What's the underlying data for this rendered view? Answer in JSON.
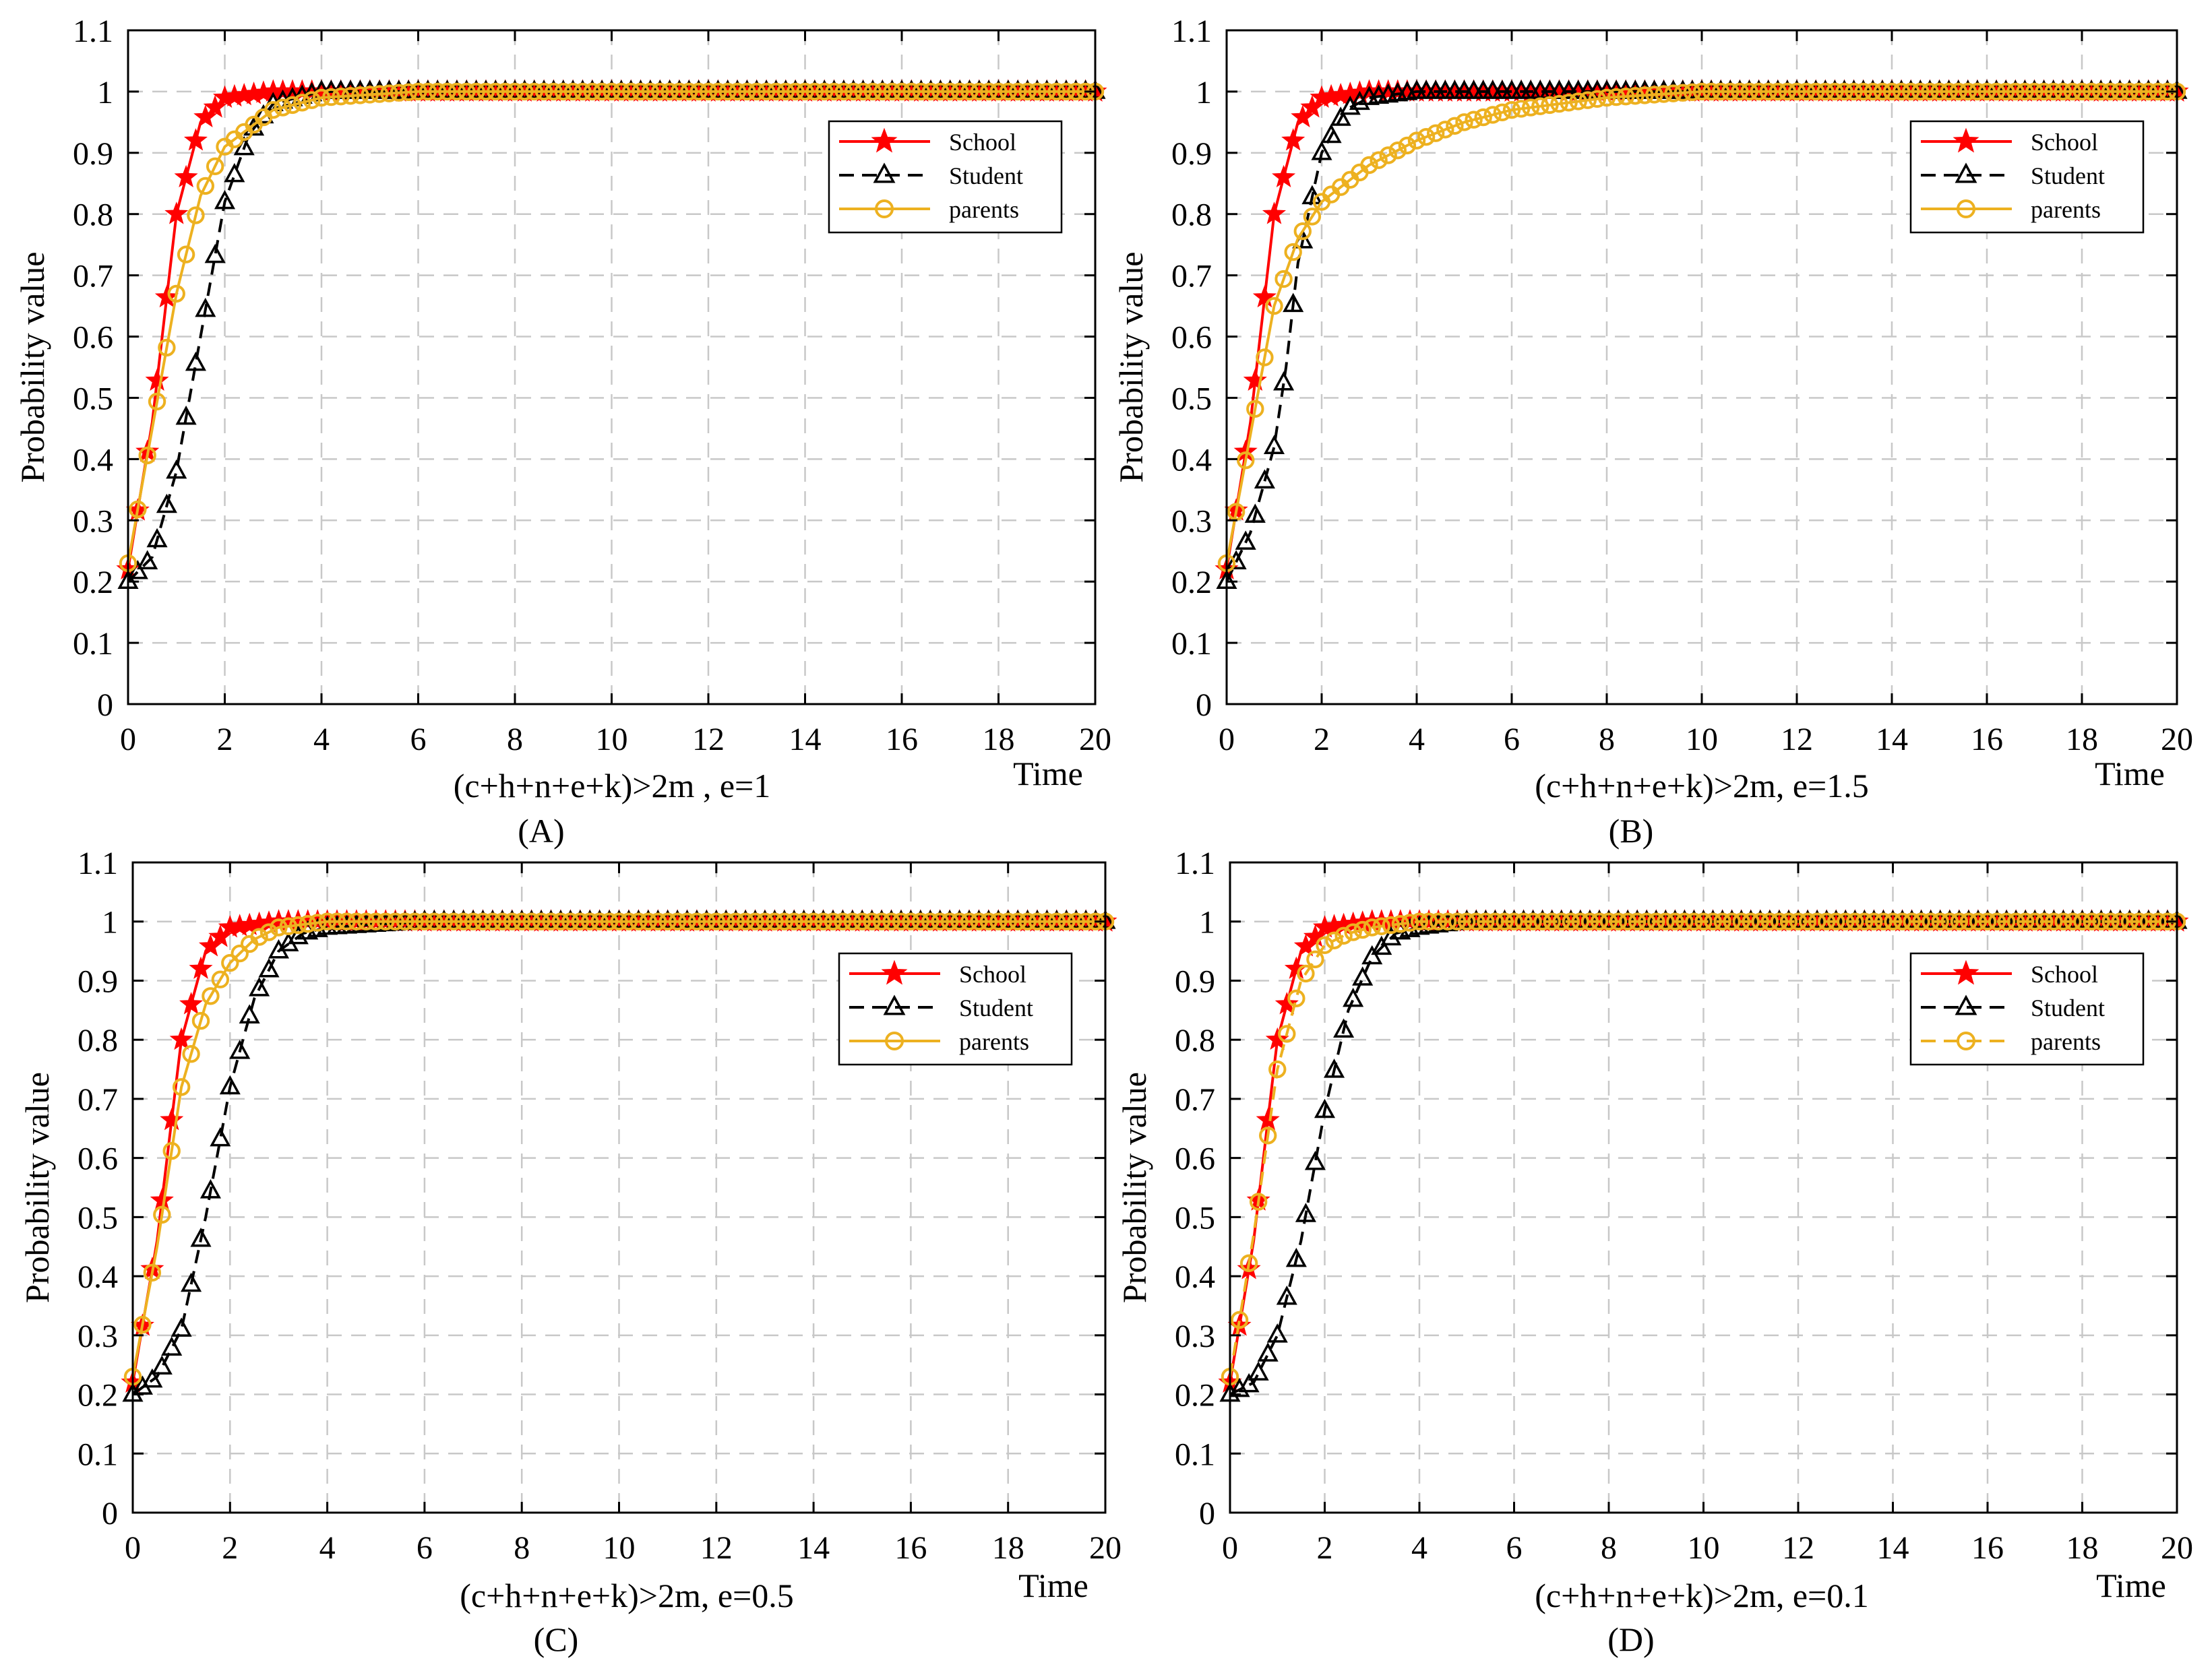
{
  "figure": {
    "ylabel": "Probability value",
    "time_label": "Time",
    "legend_labels": [
      "School",
      "Student",
      "parents"
    ],
    "colors": {
      "school": "#ff0000",
      "student": "#000000",
      "parents": "#edb120",
      "grid": "#c8c8c8"
    },
    "icons": {
      "school": "star-marker",
      "student": "triangle-marker",
      "parents": "circle-marker"
    }
  },
  "chart_data": [
    {
      "panel": "(A)",
      "type": "line",
      "subtitle": "(c+h+n+e+k)>2m , e=1",
      "xlabel": "Time",
      "ylabel": "Probability value",
      "xlim": [
        0,
        20
      ],
      "ylim": [
        0,
        1.1
      ],
      "xticks": [
        0,
        2,
        4,
        6,
        8,
        10,
        12,
        14,
        16,
        18,
        20
      ],
      "yticks": [
        0,
        0.1,
        0.2,
        0.3,
        0.4,
        0.5,
        0.6,
        0.7,
        0.8,
        0.9,
        1,
        1.1
      ],
      "grid": true,
      "legend": "top-right",
      "parents_line_style": "solid",
      "series": [
        {
          "name": "School",
          "x": [
            0,
            0.5,
            1,
            1.5,
            2,
            3,
            4,
            6,
            10,
            20
          ],
          "y": [
            0.22,
            0.46,
            0.8,
            0.95,
            0.99,
            1.0,
            1.0,
            1.0,
            1.0,
            1.0
          ]
        },
        {
          "name": "Student",
          "x": [
            0,
            0.5,
            1,
            1.5,
            2,
            2.5,
            3,
            4,
            6,
            10,
            20
          ],
          "y": [
            0.2,
            0.24,
            0.38,
            0.6,
            0.82,
            0.93,
            0.98,
            1.0,
            1.0,
            1.0,
            1.0
          ]
        },
        {
          "name": "parents",
          "x": [
            0,
            0.5,
            1,
            1.5,
            2,
            3,
            4,
            6,
            10,
            20
          ],
          "y": [
            0.23,
            0.45,
            0.67,
            0.83,
            0.91,
            0.97,
            0.99,
            1.0,
            1.0,
            1.0
          ]
        }
      ]
    },
    {
      "panel": "(B)",
      "type": "line",
      "subtitle": "(c+h+n+e+k)>2m, e=1.5",
      "xlabel": "Time",
      "ylabel": "Probability value",
      "xlim": [
        0,
        20
      ],
      "ylim": [
        0,
        1.1
      ],
      "xticks": [
        0,
        2,
        4,
        6,
        8,
        10,
        12,
        14,
        16,
        18,
        20
      ],
      "yticks": [
        0,
        0.1,
        0.2,
        0.3,
        0.4,
        0.5,
        0.6,
        0.7,
        0.8,
        0.9,
        1,
        1.1
      ],
      "grid": true,
      "legend": "top-right",
      "parents_line_style": "solid",
      "series": [
        {
          "name": "School",
          "x": [
            0,
            0.5,
            1,
            1.5,
            2,
            3,
            4,
            6,
            10,
            20
          ],
          "y": [
            0.22,
            0.46,
            0.8,
            0.95,
            0.99,
            1.0,
            1.0,
            1.0,
            1.0,
            1.0
          ]
        },
        {
          "name": "Student",
          "x": [
            0,
            0.5,
            1,
            1.25,
            1.5,
            2,
            2.5,
            3,
            4,
            6,
            10,
            20
          ],
          "y": [
            0.2,
            0.28,
            0.42,
            0.55,
            0.72,
            0.9,
            0.97,
            0.99,
            1.0,
            1.0,
            1.0,
            1.0
          ]
        },
        {
          "name": "parents",
          "x": [
            0,
            0.5,
            1,
            1.5,
            2,
            3,
            4,
            5,
            6,
            7,
            8,
            10,
            12,
            20
          ],
          "y": [
            0.23,
            0.44,
            0.65,
            0.76,
            0.82,
            0.88,
            0.92,
            0.95,
            0.97,
            0.98,
            0.99,
            1.0,
            1.0,
            1.0
          ]
        }
      ]
    },
    {
      "panel": "(C)",
      "type": "line",
      "subtitle": "(c+h+n+e+k)>2m, e=0.5",
      "xlabel": "Time",
      "ylabel": "Probability value",
      "xlim": [
        0,
        20
      ],
      "ylim": [
        0,
        1.1
      ],
      "xticks": [
        0,
        2,
        4,
        6,
        8,
        10,
        12,
        14,
        16,
        18,
        20
      ],
      "yticks": [
        0,
        0.1,
        0.2,
        0.3,
        0.4,
        0.5,
        0.6,
        0.7,
        0.8,
        0.9,
        1,
        1.1
      ],
      "grid": true,
      "legend": "top-right",
      "parents_line_style": "solid",
      "series": [
        {
          "name": "School",
          "x": [
            0,
            0.5,
            1,
            1.5,
            2,
            3,
            4,
            6,
            10,
            20
          ],
          "y": [
            0.22,
            0.46,
            0.8,
            0.95,
            0.99,
            1.0,
            1.0,
            1.0,
            1.0,
            1.0
          ]
        },
        {
          "name": "Student",
          "x": [
            0,
            0.5,
            1,
            1.5,
            2,
            2.5,
            3,
            3.5,
            4,
            6,
            10,
            20
          ],
          "y": [
            0.2,
            0.23,
            0.31,
            0.5,
            0.72,
            0.87,
            0.95,
            0.98,
            0.99,
            1.0,
            1.0,
            1.0
          ]
        },
        {
          "name": "parents",
          "x": [
            0,
            0.5,
            1,
            1.5,
            2,
            2.5,
            3,
            4,
            6,
            10,
            20
          ],
          "y": [
            0.23,
            0.45,
            0.72,
            0.86,
            0.93,
            0.97,
            0.99,
            1.0,
            1.0,
            1.0,
            1.0
          ]
        }
      ]
    },
    {
      "panel": "(D)",
      "type": "line",
      "subtitle": "(c+h+n+e+k)>2m, e=0.1",
      "xlabel": "Time",
      "ylabel": "Probability value",
      "xlim": [
        0,
        20
      ],
      "ylim": [
        0,
        1.1
      ],
      "xticks": [
        0,
        2,
        4,
        6,
        8,
        10,
        12,
        14,
        16,
        18,
        20
      ],
      "yticks": [
        0,
        0.1,
        0.2,
        0.3,
        0.4,
        0.5,
        0.6,
        0.7,
        0.8,
        0.9,
        1,
        1.1
      ],
      "grid": true,
      "legend": "top-right",
      "parents_line_style": "dashed",
      "series": [
        {
          "name": "School",
          "x": [
            0,
            0.5,
            1,
            1.5,
            2,
            3,
            4,
            6,
            10,
            20
          ],
          "y": [
            0.22,
            0.46,
            0.8,
            0.95,
            0.99,
            1.0,
            1.0,
            1.0,
            1.0,
            1.0
          ]
        },
        {
          "name": "Student",
          "x": [
            0,
            0.5,
            1,
            1.5,
            2,
            2.5,
            3,
            3.5,
            4,
            5,
            6,
            10,
            20
          ],
          "y": [
            0.2,
            0.22,
            0.3,
            0.46,
            0.68,
            0.85,
            0.94,
            0.98,
            0.99,
            1.0,
            1.0,
            1.0,
            1.0
          ]
        },
        {
          "name": "parents",
          "x": [
            0,
            0.5,
            1,
            1.5,
            2,
            2.5,
            3,
            4,
            6,
            10,
            20
          ],
          "y": [
            0.23,
            0.47,
            0.75,
            0.9,
            0.96,
            0.98,
            0.99,
            1.0,
            1.0,
            1.0,
            1.0
          ]
        }
      ]
    }
  ]
}
